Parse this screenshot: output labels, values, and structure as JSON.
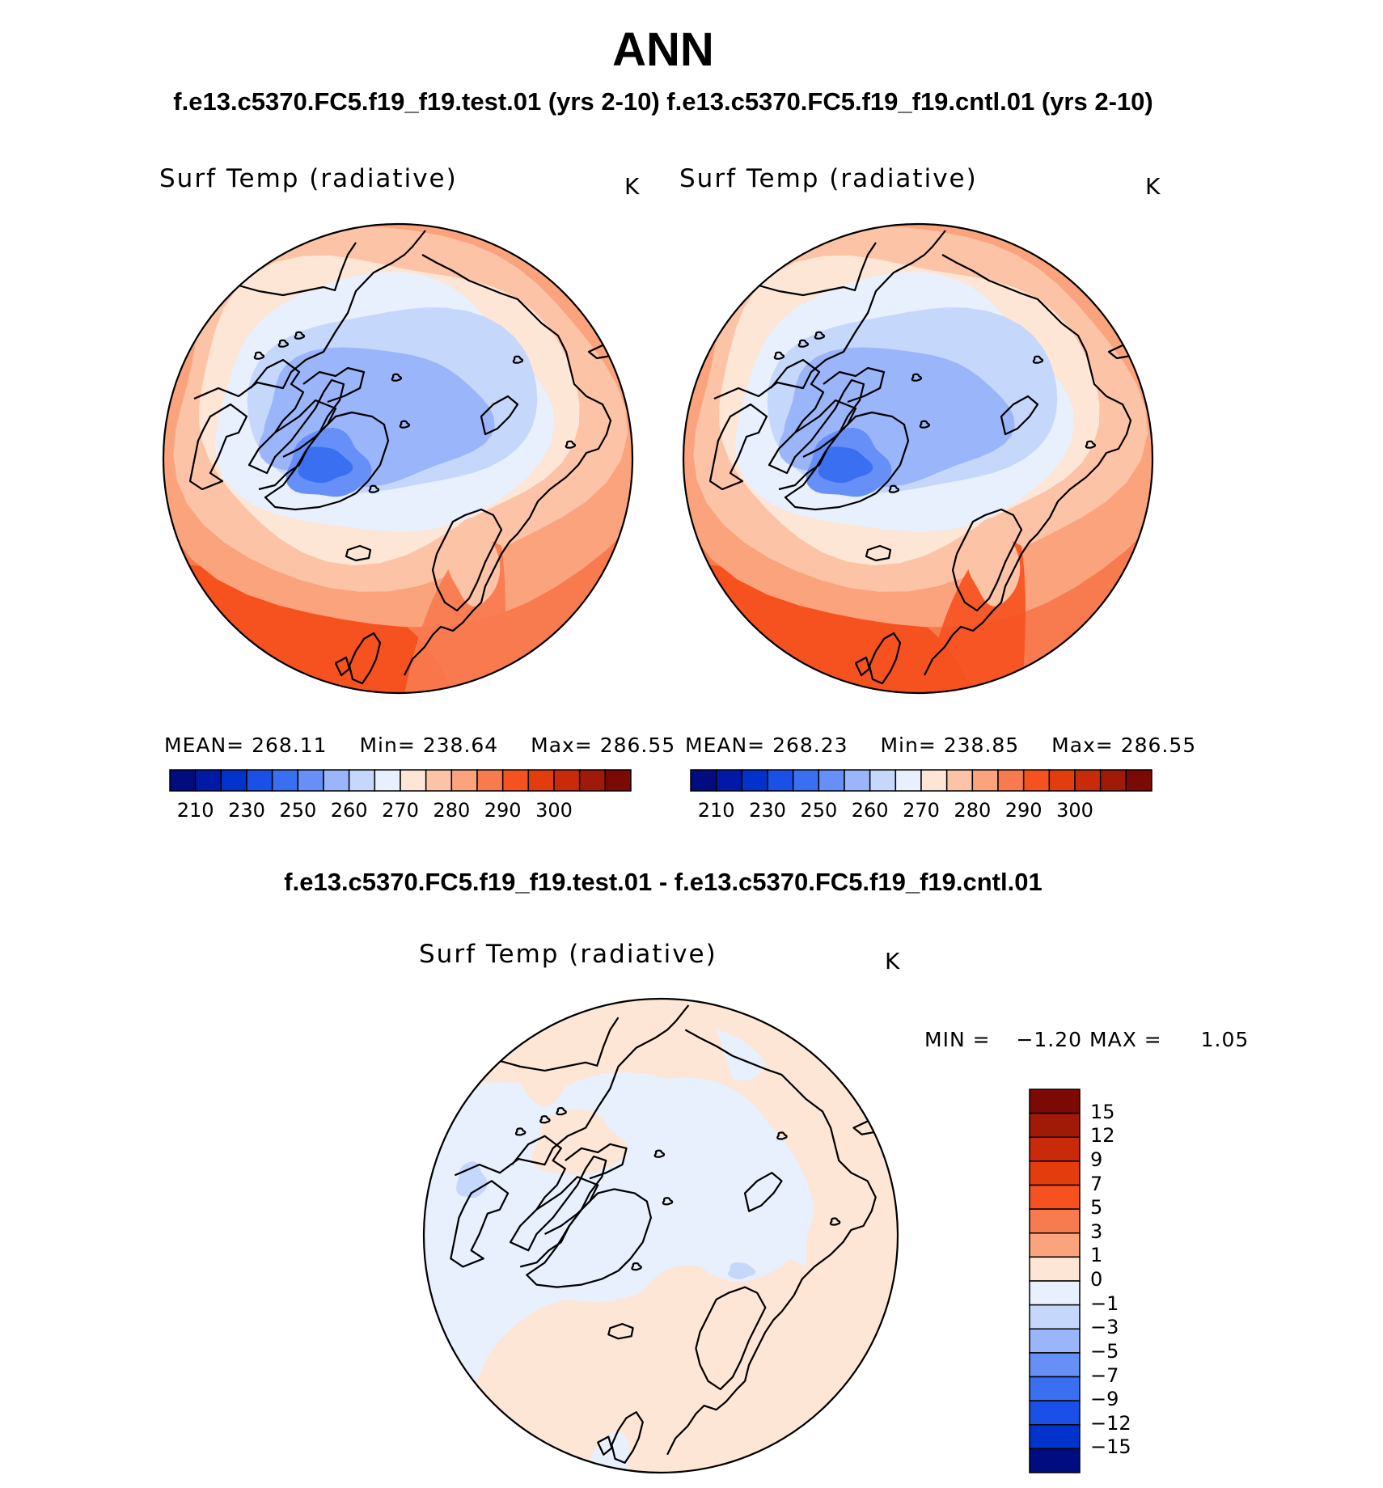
{
  "title": "ANN",
  "subtitle": "f.e13.c5370.FC5.f19_f19.test.01 (yrs 2-10) f.e13.c5370.FC5.f19_f19.cntl.01 (yrs 2-10)",
  "difference_title": "f.e13.c5370.FC5.f19_f19.test.01 - f.e13.c5370.FC5.f19_f19.cntl.01",
  "panels": [
    {
      "variable": "Surf Temp (radiative)",
      "units": "K",
      "stats": {
        "mean_label": "MEAN=",
        "mean": "268.11",
        "min_label": "Min=",
        "min": "238.64",
        "max_label": "Max=",
        "max": "286.55"
      }
    },
    {
      "variable": "Surf Temp (radiative)",
      "units": "K",
      "stats": {
        "mean_label": "MEAN=",
        "mean": "268.23",
        "min_label": "Min=",
        "min": "238.85",
        "max_label": "Max=",
        "max": "286.55"
      }
    }
  ],
  "difference_panel": {
    "variable": "Surf Temp (radiative)",
    "units": "K",
    "stats": {
      "min_label": "MIN =",
      "min": "−1.20",
      "max_label": "MAX =",
      "max": "1.05"
    }
  },
  "colorbar_abs": {
    "tick_labels": [
      "210",
      "230",
      "250",
      "260",
      "270",
      "280",
      "290",
      "300"
    ],
    "colors": [
      "#000c80",
      "#0019a6",
      "#0033cc",
      "#1a4fe8",
      "#3a6ff2",
      "#6690f7",
      "#9bb5fa",
      "#c6d7fc",
      "#e8effd",
      "#fde6d6",
      "#fcc3a6",
      "#fba37d",
      "#f87a4f",
      "#f6521f",
      "#e43d0d",
      "#c92a0a",
      "#a11a08",
      "#7c0a04"
    ]
  },
  "colorbar_diff": {
    "tick_labels": [
      "15",
      "12",
      "9",
      "7",
      "5",
      "3",
      "1",
      "0",
      "−1",
      "−3",
      "−5",
      "−7",
      "−9",
      "−12",
      "−15"
    ],
    "colors": [
      "#7c0a04",
      "#a11a08",
      "#c92a0a",
      "#e43d0d",
      "#f6521f",
      "#f87a4f",
      "#fba37d",
      "#fde6d6",
      "#e8effd",
      "#c6d7fc",
      "#9bb5fa",
      "#6690f7",
      "#3a6ff2",
      "#1a4fe8",
      "#0033cc",
      "#000c80"
    ]
  },
  "map_palette": {
    "ring_1": "#f87a4f",
    "ring_2": "#fba37d",
    "ring_3": "#fcc3a6",
    "ring_4": "#fde6d6",
    "ring_5": "#e8effd",
    "ring_6": "#c6d7fc",
    "ring_7": "#9bb5fa",
    "ring_8": "#6690f7",
    "greenland_core": "#3a6ff2",
    "hot_edge": "#f6521f",
    "diff_positive": "#fde6d6",
    "diff_negative": "#e8effd",
    "diff_strong": "#c6d7fc"
  }
}
